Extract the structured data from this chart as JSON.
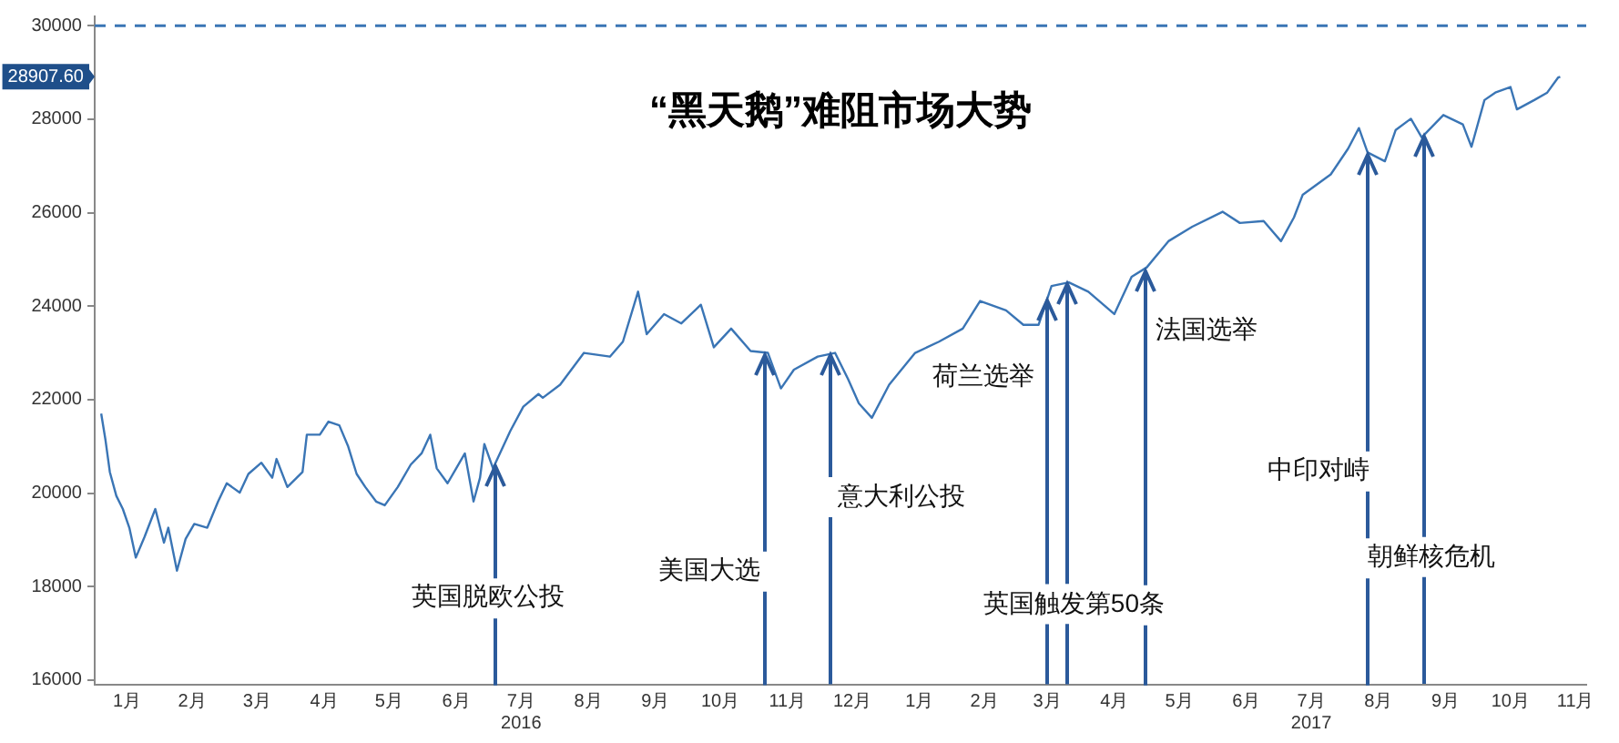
{
  "chart_data": {
    "type": "line",
    "title": "“黑天鹅”难阻市场大势",
    "x": [
      "2016-01-04",
      "2016-01-06",
      "2016-01-08",
      "2016-01-11",
      "2016-01-14",
      "2016-01-17",
      "2016-01-20",
      "2016-01-24",
      "2016-01-29",
      "2016-02-02",
      "2016-02-04",
      "2016-02-08",
      "2016-02-12",
      "2016-02-16",
      "2016-02-22",
      "2016-02-27",
      "2016-03-02",
      "2016-03-08",
      "2016-03-12",
      "2016-03-18",
      "2016-03-23",
      "2016-03-25",
      "2016-03-30",
      "2016-04-06",
      "2016-04-08",
      "2016-04-14",
      "2016-04-18",
      "2016-04-23",
      "2016-04-27",
      "2016-05-01",
      "2016-05-05",
      "2016-05-10",
      "2016-05-14",
      "2016-05-20",
      "2016-05-26",
      "2016-05-31",
      "2016-06-04",
      "2016-06-07",
      "2016-06-12",
      "2016-06-16",
      "2016-06-20",
      "2016-06-24",
      "2016-06-27",
      "2016-06-29",
      "2016-07-03",
      "2016-07-11",
      "2016-07-17",
      "2016-07-24",
      "2016-07-26",
      "2016-08-03",
      "2016-08-14",
      "2016-08-26",
      "2016-09-01",
      "2016-09-08",
      "2016-09-12",
      "2016-09-20",
      "2016-09-28",
      "2016-10-07",
      "2016-10-13",
      "2016-10-21",
      "2016-10-30",
      "2016-11-07",
      "2016-11-13",
      "2016-11-19",
      "2016-11-30",
      "2016-12-08",
      "2016-12-14",
      "2016-12-19",
      "2016-12-25",
      "2017-01-02",
      "2017-01-14",
      "2017-01-25",
      "2017-02-05",
      "2017-02-13",
      "2017-02-25",
      "2017-03-05",
      "2017-03-12",
      "2017-03-18",
      "2017-03-26",
      "2017-04-04",
      "2017-04-16",
      "2017-04-24",
      "2017-05-01",
      "2017-05-11",
      "2017-05-22",
      "2017-06-05",
      "2017-06-13",
      "2017-06-24",
      "2017-07-02",
      "2017-07-08",
      "2017-07-12",
      "2017-07-25",
      "2017-08-02",
      "2017-08-07",
      "2017-08-11",
      "2017-08-19",
      "2017-08-24",
      "2017-08-31",
      "2017-09-05",
      "2017-09-15",
      "2017-09-24",
      "2017-09-28",
      "2017-10-04",
      "2017-10-09",
      "2017-10-16",
      "2017-10-19",
      "2017-10-27",
      "2017-11-02",
      "2017-11-07",
      "2017-11-08"
    ],
    "series": [
      {
        "color": "#3a75b5",
        "values": [
          21700,
          21130,
          20450,
          19940,
          19660,
          19260,
          18620,
          19060,
          19660,
          18940,
          19260,
          18340,
          19020,
          19340,
          19260,
          19820,
          20210,
          20010,
          20410,
          20650,
          20330,
          20730,
          20130,
          20450,
          21250,
          21250,
          21530,
          21450,
          21010,
          20410,
          20130,
          19820,
          19740,
          20130,
          20610,
          20850,
          21250,
          20530,
          20210,
          20530,
          20850,
          19820,
          20330,
          21050,
          20530,
          21330,
          21850,
          22120,
          22040,
          22320,
          23000,
          22920,
          23240,
          24310,
          23400,
          23830,
          23630,
          24030,
          23120,
          23520,
          23040,
          23000,
          22240,
          22640,
          22920,
          23000,
          22440,
          21920,
          21610,
          22320,
          23000,
          23240,
          23520,
          24110,
          23910,
          23600,
          23600,
          24430,
          24510,
          24310,
          23830,
          24630,
          24830,
          25390,
          25700,
          26020,
          25780,
          25820,
          25390,
          25900,
          26380,
          26820,
          27370,
          27810,
          27290,
          27100,
          27770,
          28010,
          27610,
          28090,
          27890,
          27410,
          28410,
          28570,
          28690,
          28210,
          28410,
          28570,
          28890,
          28907.6
        ]
      }
    ],
    "xlim": [
      "2016-01-01",
      "2017-11-20"
    ],
    "xticks": [
      {
        "value": "2016-01-16",
        "label": "1月"
      },
      {
        "value": "2016-02-15",
        "label": "2月"
      },
      {
        "value": "2016-03-16",
        "label": "3月"
      },
      {
        "value": "2016-04-16",
        "label": "4月"
      },
      {
        "value": "2016-05-16",
        "label": "5月"
      },
      {
        "value": "2016-06-16",
        "label": "6月"
      },
      {
        "value": "2016-07-16",
        "label": "7月\n2016"
      },
      {
        "value": "2016-08-16",
        "label": "8月"
      },
      {
        "value": "2016-09-16",
        "label": "9月"
      },
      {
        "value": "2016-10-16",
        "label": "10月"
      },
      {
        "value": "2016-11-16",
        "label": "11月"
      },
      {
        "value": "2016-12-16",
        "label": "12月"
      },
      {
        "value": "2017-01-16",
        "label": "1月"
      },
      {
        "value": "2017-02-15",
        "label": "2月"
      },
      {
        "value": "2017-03-16",
        "label": "3月"
      },
      {
        "value": "2017-04-16",
        "label": "4月"
      },
      {
        "value": "2017-05-16",
        "label": "5月"
      },
      {
        "value": "2017-06-16",
        "label": "6月"
      },
      {
        "value": "2017-07-16",
        "label": "7月\n2017"
      },
      {
        "value": "2017-08-16",
        "label": "8月"
      },
      {
        "value": "2017-09-16",
        "label": "9月"
      },
      {
        "value": "2017-10-16",
        "label": "10月"
      },
      {
        "value": "2017-11-15",
        "label": "11月"
      }
    ],
    "ylim": [
      15900,
      30200
    ],
    "yticks": [
      16000,
      18000,
      20000,
      22000,
      24000,
      26000,
      28000,
      30000
    ],
    "ref_lines": [
      {
        "axis": "y",
        "value": 30000,
        "color": "#3a75b5",
        "line_style": "dashed"
      }
    ],
    "annotations": [
      {
        "text": "英国脱欧公投",
        "x": "2016-07-04",
        "y": 20630
      },
      {
        "text": "美国大选",
        "x": "2016-11-06",
        "y": 23000
      },
      {
        "text": "意大利公投",
        "x": "2016-12-06",
        "y": 22980
      },
      {
        "text": "荷兰选举",
        "x": "2017-03-16",
        "y": 24150
      },
      {
        "text": "英国触发第50条",
        "x": "2017-03-25",
        "y": 24500
      },
      {
        "text": "法国选举",
        "x": "2017-04-30",
        "y": 24800
      },
      {
        "text": "中印对峙",
        "x": "2017-08-11",
        "y": 27290
      },
      {
        "text": "朝鲜核危机",
        "x": "2017-09-06",
        "y": 27650
      },
      "28907.60"
    ],
    "grid": false,
    "legend": false,
    "marker": "none",
    "line_style": "solid"
  }
}
